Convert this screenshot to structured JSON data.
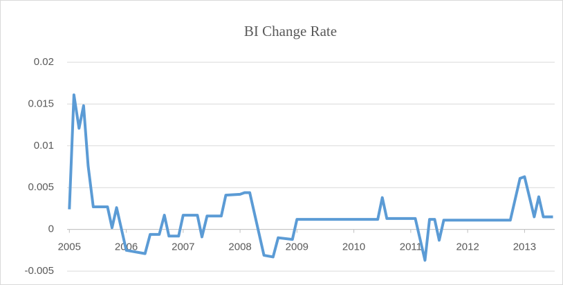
{
  "chart_data": {
    "type": "line",
    "title": "BI Change Rate",
    "x": [
      2005.0,
      2005.08,
      2005.17,
      2005.25,
      2005.33,
      2005.42,
      2005.67,
      2005.75,
      2005.83,
      2006.0,
      2006.33,
      2006.42,
      2006.58,
      2006.67,
      2006.75,
      2006.92,
      2007.0,
      2007.25,
      2007.33,
      2007.42,
      2007.67,
      2007.75,
      2008.0,
      2008.08,
      2008.17,
      2008.42,
      2008.58,
      2008.67,
      2008.92,
      2009.0,
      2010.42,
      2010.5,
      2010.58,
      2011.08,
      2011.25,
      2011.33,
      2011.42,
      2011.5,
      2011.58,
      2012.75,
      2012.92,
      2013.0,
      2013.17,
      2013.25,
      2013.33,
      2013.5
    ],
    "series": [
      {
        "color": "#5b9bd5",
        "values": [
          0.0024,
          0.0161,
          0.0121,
          0.0148,
          0.0076,
          0.0027,
          0.0027,
          0.0002,
          0.0026,
          -0.0025,
          -0.0029,
          -0.0006,
          -0.0006,
          0.0017,
          -0.0008,
          -0.0008,
          0.0017,
          0.0017,
          -0.0009,
          0.0016,
          0.0016,
          0.0041,
          0.0042,
          0.0044,
          0.0044,
          -0.0031,
          -0.0033,
          -0.001,
          -0.0012,
          0.0012,
          0.0012,
          0.0038,
          0.0013,
          0.0013,
          -0.0037,
          0.0012,
          0.0012,
          -0.0013,
          0.0011,
          0.0011,
          0.0061,
          0.0063,
          0.0015,
          0.0039,
          0.0015,
          0.0015
        ]
      }
    ],
    "xlim": [
      2004.96,
      2013.53
    ],
    "xticks": [
      2005,
      2006,
      2007,
      2008,
      2009,
      2010,
      2011,
      2012,
      2013
    ],
    "ylim": [
      -0.005,
      0.02
    ],
    "yticks": [
      -0.005,
      0,
      0.005,
      0.01,
      0.015,
      0.02
    ],
    "grid": true
  }
}
